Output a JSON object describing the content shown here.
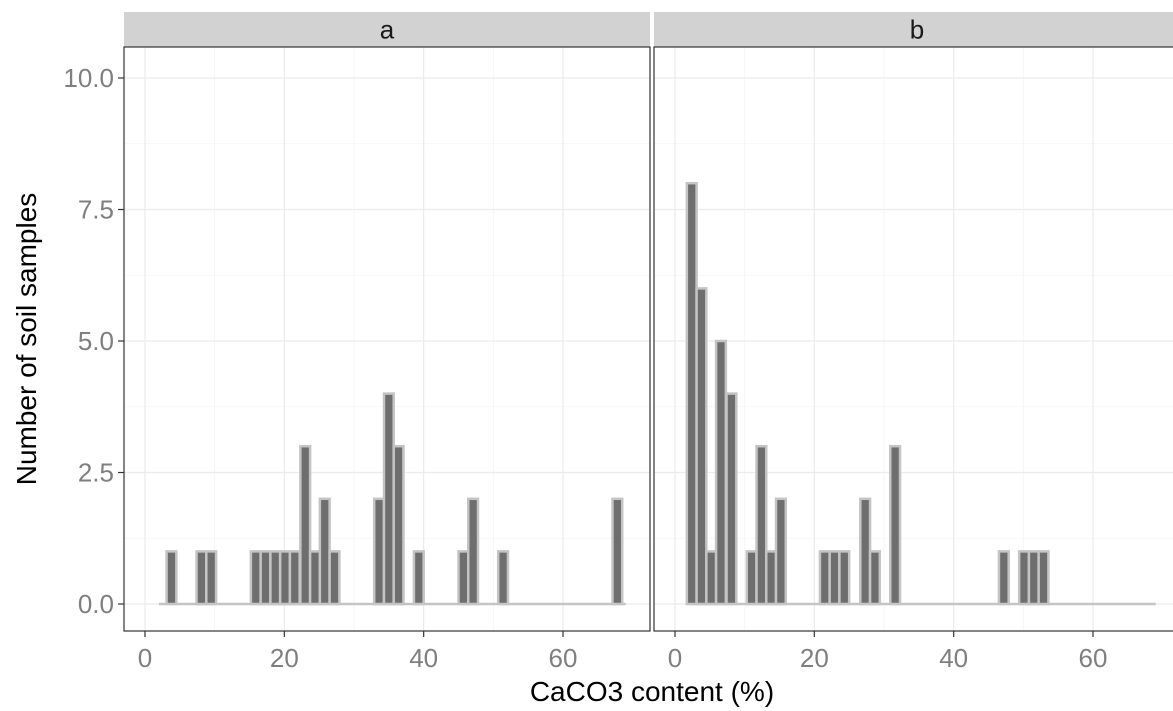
{
  "chart_data": {
    "type": "bar",
    "xlabel": "CaCO3 content (%)",
    "ylabel": "Number of soil samples",
    "xlim": [
      -2,
      72
    ],
    "ylim": [
      -0.5,
      10.5
    ],
    "x_ticks": [
      0,
      20,
      40,
      60
    ],
    "y_ticks": [
      0.0,
      2.5,
      5.0,
      7.5,
      10.0
    ],
    "y_tick_labels": [
      "0.0",
      "2.5",
      "5.0",
      "7.5",
      "10.0"
    ],
    "bin_width": 1.4,
    "grid": true,
    "colors": {
      "bar_fill": "#6e6e6e",
      "bar_outline": "#c4c4c4",
      "strip": "#d2d2d2"
    },
    "panels": [
      {
        "label": "a",
        "x_range": [
          2.0,
          69.0
        ],
        "bars": [
          {
            "x": 3.8,
            "count": 1
          },
          {
            "x": 8.1,
            "count": 1
          },
          {
            "x": 9.5,
            "count": 1
          },
          {
            "x": 15.9,
            "count": 1
          },
          {
            "x": 17.3,
            "count": 1
          },
          {
            "x": 18.7,
            "count": 1
          },
          {
            "x": 20.1,
            "count": 1
          },
          {
            "x": 21.5,
            "count": 1
          },
          {
            "x": 23.0,
            "count": 3
          },
          {
            "x": 24.4,
            "count": 1
          },
          {
            "x": 25.8,
            "count": 2
          },
          {
            "x": 27.2,
            "count": 1
          },
          {
            "x": 33.6,
            "count": 2
          },
          {
            "x": 35.0,
            "count": 4
          },
          {
            "x": 36.4,
            "count": 3
          },
          {
            "x": 39.3,
            "count": 1
          },
          {
            "x": 45.7,
            "count": 1
          },
          {
            "x": 47.1,
            "count": 2
          },
          {
            "x": 51.4,
            "count": 1
          },
          {
            "x": 67.8,
            "count": 2
          }
        ]
      },
      {
        "label": "b",
        "x_range": [
          2.0,
          69.0
        ],
        "bars": [
          {
            "x": 2.4,
            "count": 8
          },
          {
            "x": 3.8,
            "count": 6
          },
          {
            "x": 5.2,
            "count": 1
          },
          {
            "x": 6.6,
            "count": 5
          },
          {
            "x": 8.1,
            "count": 4
          },
          {
            "x": 11.0,
            "count": 1
          },
          {
            "x": 12.4,
            "count": 3
          },
          {
            "x": 13.8,
            "count": 1
          },
          {
            "x": 15.2,
            "count": 2
          },
          {
            "x": 21.5,
            "count": 1
          },
          {
            "x": 22.9,
            "count": 1
          },
          {
            "x": 24.3,
            "count": 1
          },
          {
            "x": 27.3,
            "count": 2
          },
          {
            "x": 28.7,
            "count": 1
          },
          {
            "x": 31.6,
            "count": 3
          },
          {
            "x": 47.2,
            "count": 1
          },
          {
            "x": 50.1,
            "count": 1
          },
          {
            "x": 51.5,
            "count": 1
          },
          {
            "x": 52.9,
            "count": 1
          }
        ]
      }
    ]
  }
}
